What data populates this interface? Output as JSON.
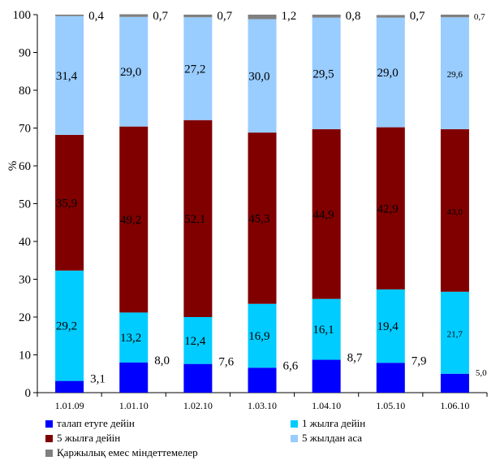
{
  "chart_data": {
    "type": "bar",
    "stacked": true,
    "ylabel": "%",
    "ylim": [
      0,
      100
    ],
    "yticks": [
      "0",
      "10",
      "20",
      "30",
      "40",
      "50",
      "60",
      "70",
      "80",
      "90",
      "100"
    ],
    "grid": false,
    "legend_position": "bottom",
    "categories": [
      "1.01.09",
      "1.01.10",
      "1.02.10",
      "1.03.10",
      "1.04.10",
      "1.05.10",
      "1.06.10"
    ],
    "series": [
      {
        "name": "талап етуге дейін",
        "color": "#0000ff",
        "values": [
          3.1,
          8.0,
          7.6,
          6.6,
          8.7,
          7.9,
          5.0
        ],
        "labels": [
          "3,1",
          "8,0",
          "7,6",
          "6,6",
          "8,7",
          "7,9",
          "5,0"
        ]
      },
      {
        "name": "1 жылға дейін",
        "color": "#00ccff",
        "values": [
          29.2,
          13.2,
          12.4,
          16.9,
          16.1,
          19.4,
          21.7
        ],
        "labels": [
          "29,2",
          "13,2",
          "12,4",
          "16,9",
          "16,1",
          "19,4",
          "21,7"
        ]
      },
      {
        "name": "5 жылға дейін",
        "color": "#800000",
        "values": [
          35.9,
          49.2,
          52.1,
          45.3,
          44.9,
          42.9,
          43.0
        ],
        "labels": [
          "35,9",
          "49,2",
          "52,1",
          "45,3",
          "44,9",
          "42,9",
          "43,0"
        ]
      },
      {
        "name": "5 жылдан аса",
        "color": "#99ccff",
        "values": [
          31.4,
          29.0,
          27.2,
          30.0,
          29.5,
          29.0,
          29.6
        ],
        "labels": [
          "31,4",
          "29,0",
          "27,2",
          "30,0",
          "29,5",
          "29,0",
          "29,6"
        ]
      },
      {
        "name": "Қаржылық емес міндеттемелер",
        "color": "#808080",
        "values": [
          0.4,
          0.7,
          0.7,
          1.2,
          0.8,
          0.7,
          0.7
        ],
        "labels": [
          "0,4",
          "0,7",
          "0,7",
          "1,2",
          "0,8",
          "0,7",
          "0,7"
        ]
      }
    ]
  }
}
